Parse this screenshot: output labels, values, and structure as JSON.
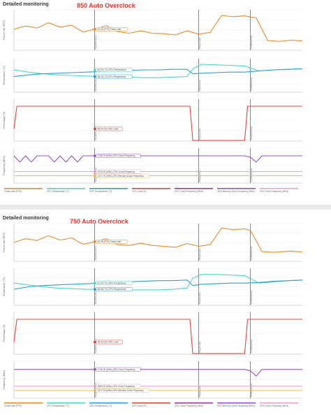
{
  "panels": [
    {
      "title": "Detailed monitoring",
      "overclock_label": "850 Auto Overclock",
      "legend": [
        {
          "label": "Frame rate (FPS)",
          "color": "#ee8a2a"
        },
        {
          "label": "CPU Temperature (°C)",
          "color": "#46d9c4"
        },
        {
          "label": "GPU Temperature (°C)",
          "color": "#2a9ee0"
        },
        {
          "label": "CPU Load (%)",
          "color": "#e0463a"
        },
        {
          "label": "CPU Clock Frequency (MHz)",
          "color": "#a23a9a"
        },
        {
          "label": "GPU Memory Clock Frequency (MHz)",
          "color": "#9b4fdb"
        },
        {
          "label": "GPU Clock Frequency (MHz)",
          "color": "#f0a0c8"
        }
      ]
    },
    {
      "title": "Detailed monitoring",
      "overclock_label": "750 Auto Overclock",
      "legend": [
        {
          "label": "Frame rate (FPS)",
          "color": "#ee8a2a"
        },
        {
          "label": "CPU Temperature (°C)",
          "color": "#46d9c4"
        },
        {
          "label": "GPU Temperature (°C)",
          "color": "#2a9ee0"
        },
        {
          "label": "CPU Load (%)",
          "color": "#e0463a"
        },
        {
          "label": "CPU Clock Frequency (MHz)",
          "color": "#a23a9a"
        },
        {
          "label": "GPU Memory Clock Frequency (MHz)",
          "color": "#9b4fdb"
        },
        {
          "label": "GPU Clock Frequency (MHz)",
          "color": "#f0a0c8"
        }
      ]
    }
  ],
  "chart_data": [
    {
      "type": "line",
      "panel": 0,
      "ylabel": "Frame rate (FPS)",
      "ylim": [
        0,
        100
      ],
      "x": [
        0,
        4,
        8,
        12,
        16,
        20,
        24,
        28,
        32,
        36,
        40,
        44,
        48,
        52,
        56,
        60,
        64,
        68,
        72,
        76,
        80,
        84,
        88,
        92,
        96,
        100
      ],
      "series": [
        {
          "name": "Frame rate (FPS)",
          "color": "#ee8a2a",
          "values": [
            52,
            60,
            55,
            68,
            57,
            62,
            45,
            52,
            61,
            46,
            42,
            48,
            42,
            41,
            38,
            48,
            40,
            44,
            86,
            83,
            85,
            80,
            24,
            22,
            25,
            23
          ]
        }
      ],
      "markers": [
        "Graphics test 1",
        "Physics test",
        "Combined test"
      ],
      "marker_x": [
        28,
        64,
        82
      ],
      "annotation": {
        "x": 28,
        "series": 0,
        "label": "41.25 (FPS) Frame rate"
      }
    },
    {
      "type": "line",
      "panel": 0,
      "ylabel": "Temperature (°C)",
      "ylim": [
        30,
        90
      ],
      "x": [
        0,
        5,
        10,
        15,
        20,
        25,
        30,
        35,
        40,
        45,
        50,
        55,
        60,
        62,
        65,
        70,
        75,
        80,
        85,
        90,
        95,
        100
      ],
      "series": [
        {
          "name": "CPU Temperature (°C)",
          "color": "#46d9c4",
          "values": [
            70,
            66,
            63,
            61,
            60,
            59,
            58,
            57,
            57,
            56,
            56,
            57,
            58,
            72,
            80,
            79,
            78,
            77,
            68,
            70,
            71,
            72
          ]
        },
        {
          "name": "GPU Temperature (°C)",
          "color": "#2a9ee0",
          "values": [
            58,
            61,
            63,
            64,
            65,
            66,
            67,
            68,
            69,
            70,
            70,
            71,
            71,
            63,
            64,
            65,
            66,
            66,
            68,
            70,
            71,
            72
          ]
        }
      ],
      "markers": [
        "Graphics test 1",
        "Physics test",
        "Combined test"
      ],
      "marker_x": [
        28,
        64,
        82
      ],
      "annotation": {
        "x": 28,
        "series": 0,
        "label": "62.90 (°C) GPU Temperature"
      },
      "annotation2": {
        "x": 28,
        "series": 1,
        "label": "66.18 (°C) CPU Temperature"
      }
    },
    {
      "type": "line",
      "panel": 0,
      "ylabel": "Percentage (%)",
      "ylim": [
        0,
        120
      ],
      "x": [
        0,
        1,
        3,
        60,
        61,
        62,
        63,
        80,
        81,
        82,
        100
      ],
      "series": [
        {
          "name": "GPU Load (%)",
          "color": "#e0463a",
          "values": [
            35,
            100,
            100,
            100,
            100,
            2,
            2,
            2,
            100,
            100,
            100
          ]
        }
      ],
      "markers": [
        "Graphics test 1",
        "Physics test",
        "Combined test"
      ],
      "marker_x": [
        28,
        64,
        82
      ],
      "annotation": {
        "x": 28,
        "series": 0,
        "label": "98.00 (%) GPU Load"
      }
    },
    {
      "type": "line",
      "panel": 0,
      "ylabel": "Frequency (MHz)",
      "ylim": [
        0,
        2500
      ],
      "x": [
        0,
        2,
        4,
        6,
        8,
        10,
        12,
        14,
        16,
        18,
        20,
        22,
        24,
        28,
        40,
        60,
        62,
        80,
        82,
        84,
        86,
        100
      ],
      "series": [
        {
          "name": "GPU Clock Frequency (MHz)",
          "color": "#9b4fdb",
          "values": [
            1950,
            1500,
            1950,
            1500,
            1950,
            1950,
            1950,
            1500,
            1950,
            1500,
            1950,
            1500,
            1950,
            1950,
            1950,
            1950,
            1950,
            1950,
            1850,
            1500,
            1950,
            1950
          ]
        },
        {
          "name": "CPU Clock Frequency (MHz)",
          "color": "#f0a0c8",
          "values": [
            820,
            820,
            820,
            820,
            820,
            820,
            820,
            820,
            820,
            820,
            820,
            820,
            820,
            820,
            820,
            820,
            820,
            820,
            820,
            820,
            820,
            820
          ]
        },
        {
          "name": "GPU Memory Clock Frequency (MHz)",
          "color": "#f0c060",
          "values": [
            520,
            520,
            520,
            520,
            520,
            520,
            520,
            520,
            520,
            520,
            520,
            520,
            520,
            520,
            520,
            520,
            520,
            520,
            520,
            520,
            520,
            520
          ]
        }
      ],
      "markers": [
        "Graphics test 1",
        "Physics test",
        "Combined test"
      ],
      "marker_x": [
        28,
        64,
        82
      ],
      "annotation": {
        "x": 28,
        "series": 0,
        "label": "1758.75 (MHz) GPU Clock Frequency"
      },
      "annotation2": {
        "x": 28,
        "series": 1,
        "label": "8700.00 (MHz) CPU Clock Frequency"
      },
      "annotation3": {
        "x": 28,
        "series": 2,
        "label": "1372.75 (MHz) GPU Memory Clock Frequency"
      }
    },
    {
      "type": "line",
      "panel": 1,
      "ylabel": "Frame rate (FPS)",
      "ylim": [
        0,
        100
      ],
      "x": [
        0,
        4,
        8,
        12,
        16,
        20,
        24,
        28,
        32,
        36,
        40,
        44,
        48,
        52,
        56,
        60,
        64,
        68,
        72,
        76,
        80,
        82,
        86,
        90,
        96,
        100
      ],
      "series": [
        {
          "name": "Frame rate (FPS)",
          "color": "#ee8a2a",
          "values": [
            50,
            60,
            55,
            68,
            56,
            62,
            45,
            52,
            60,
            44,
            42,
            48,
            42,
            40,
            37,
            47,
            40,
            44,
            88,
            84,
            86,
            82,
            26,
            24,
            27,
            25
          ]
        }
      ],
      "markers": [
        "Graphics test 1",
        "Physics test",
        "Combined test"
      ],
      "marker_x": [
        28,
        64,
        82
      ],
      "annotation": {
        "x": 28,
        "series": 0,
        "label": "40.96 (FPS) Frame rate"
      }
    },
    {
      "type": "line",
      "panel": 1,
      "ylabel": "Temperature (°C)",
      "ylim": [
        30,
        90
      ],
      "x": [
        0,
        5,
        10,
        15,
        20,
        25,
        30,
        35,
        40,
        45,
        50,
        55,
        60,
        62,
        65,
        70,
        75,
        80,
        85,
        90,
        95,
        100
      ],
      "series": [
        {
          "name": "CPU Temperature (°C)",
          "color": "#46d9c4",
          "values": [
            66,
            63,
            60,
            58,
            57,
            56,
            56,
            55,
            55,
            55,
            55,
            56,
            58,
            74,
            80,
            80,
            79,
            78,
            66,
            68,
            70,
            71
          ]
        },
        {
          "name": "GPU Temperature (°C)",
          "color": "#2a9ee0",
          "values": [
            56,
            60,
            62,
            63,
            64,
            65,
            66,
            67,
            68,
            69,
            70,
            70,
            71,
            62,
            64,
            65,
            66,
            66,
            67,
            69,
            70,
            71
          ]
        }
      ],
      "markers": [
        "Graphics test 1",
        "Physics test",
        "Combined test"
      ],
      "marker_x": [
        28,
        64,
        82
      ],
      "annotation": {
        "x": 28,
        "series": 0,
        "label": "61.60 (°C) GPU Temperature"
      },
      "annotation2": {
        "x": 28,
        "series": 1,
        "label": "66.68 (°C) CPU Temperature"
      }
    },
    {
      "type": "line",
      "panel": 1,
      "ylabel": "Percentage (%)",
      "ylim": [
        0,
        120
      ],
      "x": [
        0,
        1,
        3,
        60,
        61,
        62,
        63,
        80,
        81,
        82,
        100
      ],
      "series": [
        {
          "name": "GPU Load (%)",
          "color": "#e0463a",
          "values": [
            35,
            100,
            100,
            100,
            100,
            2,
            2,
            2,
            100,
            100,
            100
          ]
        }
      ],
      "markers": [
        "Graphics test 1",
        "Physics test",
        "Combined test"
      ],
      "marker_x": [
        28,
        64,
        82
      ],
      "annotation": {
        "x": 28,
        "series": 0,
        "label": "98.00 (%) GPU Load"
      }
    },
    {
      "type": "line",
      "panel": 1,
      "ylabel": "Frequency (MHz)",
      "ylim": [
        0,
        2500
      ],
      "x": [
        0,
        10,
        20,
        28,
        40,
        60,
        62,
        80,
        82,
        84,
        86,
        100
      ],
      "series": [
        {
          "name": "GPU Clock Frequency (MHz)",
          "color": "#9b4fdb",
          "values": [
            1950,
            1950,
            1950,
            1950,
            1950,
            1950,
            1950,
            1950,
            1850,
            1500,
            1950,
            1950
          ]
        },
        {
          "name": "CPU Clock Frequency (MHz)",
          "color": "#f0a0c8",
          "values": [
            820,
            820,
            820,
            820,
            820,
            820,
            820,
            820,
            820,
            820,
            820,
            820
          ]
        },
        {
          "name": "GPU Memory Clock Frequency (MHz)",
          "color": "#f0c060",
          "values": [
            520,
            520,
            520,
            520,
            520,
            520,
            520,
            520,
            520,
            520,
            520,
            520
          ]
        }
      ],
      "markers": [
        "Graphics test 1",
        "Physics test",
        "Combined test"
      ],
      "marker_x": [
        28,
        64,
        82
      ],
      "annotation": {
        "x": 28,
        "series": 0,
        "label": "1746.00 (MHz) GPU Clock Frequency"
      },
      "annotation2": {
        "x": 28,
        "series": 1,
        "label": "3085.00 (MHz) CPU Clock Frequency"
      },
      "annotation3": {
        "x": 28,
        "series": 2,
        "label": "1372.75 (MHz) GPU Memory Clock Frequency"
      }
    }
  ]
}
